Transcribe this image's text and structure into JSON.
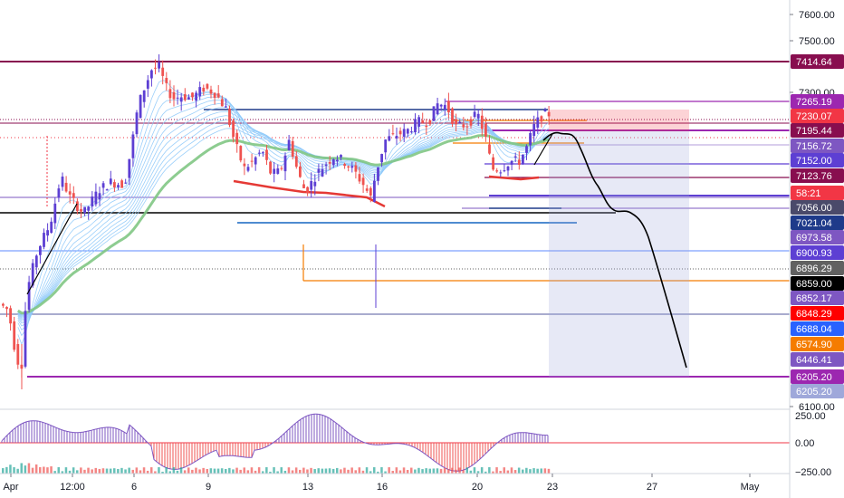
{
  "chart_data": {
    "type": "candlestick",
    "price_axis": {
      "labels": [
        "7600.00",
        "7500.00",
        "7300.00",
        "6100.00"
      ],
      "values": [
        7600,
        7500,
        7300,
        6100
      ]
    },
    "time_axis": {
      "labels": [
        "Apr",
        "12:00",
        "6",
        "9",
        "13",
        "16",
        "20",
        "23",
        "27",
        "May"
      ]
    },
    "oscillator_axis": {
      "labels": [
        "250.00",
        "0.00",
        "−250.00"
      ]
    },
    "price_badges": [
      {
        "text": "7414.64",
        "color": "#880e4f"
      },
      {
        "text": "7265.19",
        "color": "#9c27b0"
      },
      {
        "text": "7230.07",
        "color": "#f23645"
      },
      {
        "text": "7195.44",
        "color": "#880e4f"
      },
      {
        "text": "7156.72",
        "color": "#7e57c2"
      },
      {
        "text": "7152.00",
        "color": "#5d3fd3"
      },
      {
        "text": "7123.76",
        "color": "#880e4f"
      },
      {
        "text": "58:21",
        "color": "#f23645"
      },
      {
        "text": "7056.00",
        "color": "#4a4a6a"
      },
      {
        "text": "7021.04",
        "color": "#1e3a8a"
      },
      {
        "text": "6973.58",
        "color": "#7e57c2"
      },
      {
        "text": "6900.93",
        "color": "#5d3fd3"
      },
      {
        "text": "6896.29",
        "color": "#616161"
      },
      {
        "text": "6859.00",
        "color": "#000000"
      },
      {
        "text": "6852.17",
        "color": "#7e57c2"
      },
      {
        "text": "6848.29",
        "color": "#ff0000"
      },
      {
        "text": "6688.04",
        "color": "#2962ff"
      },
      {
        "text": "6574.90",
        "color": "#f57c00"
      },
      {
        "text": "6446.41",
        "color": "#7e57c2"
      },
      {
        "text": "6205.20",
        "color": "#9c27b0"
      },
      {
        "text": "6205.20",
        "color": "#9fa8da"
      }
    ],
    "colors": {
      "up": "#5d3fd3",
      "down": "#ef5350",
      "ribbon": "#90caf9",
      "ribbon_slow": "#81c784",
      "projection": "#000000"
    },
    "grid": false
  }
}
